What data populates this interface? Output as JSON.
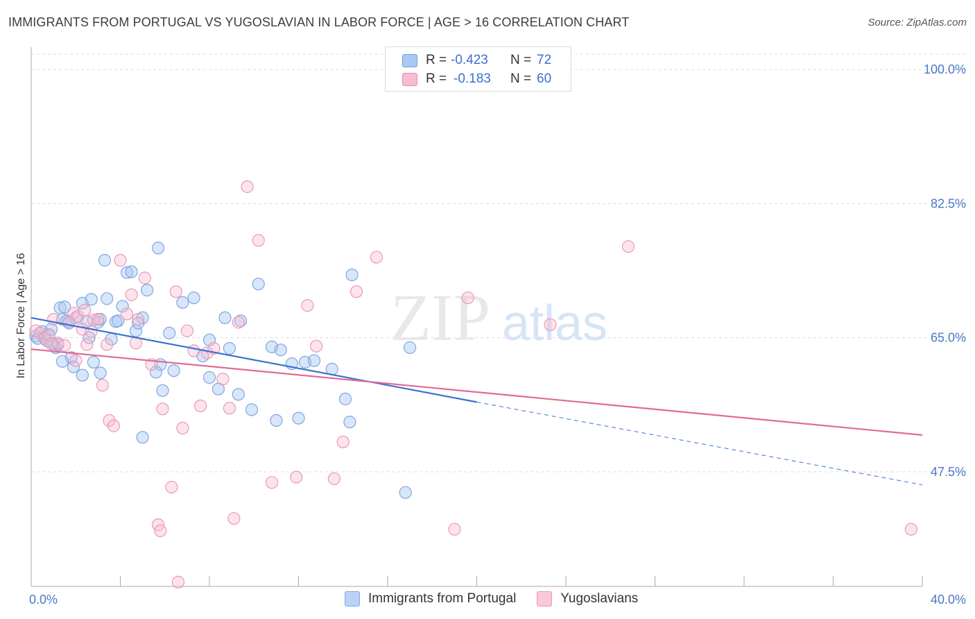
{
  "header": {
    "title": "IMMIGRANTS FROM PORTUGAL VS YUGOSLAVIAN IN LABOR FORCE | AGE > 16 CORRELATION CHART",
    "source": "Source: ZipAtlas.com"
  },
  "watermark": {
    "zip": "ZIP",
    "atlas": "atlas"
  },
  "legend": {
    "rows": [
      {
        "r_label": "R =",
        "r_value": "-0.423",
        "n_label": "N =",
        "n_value": "72",
        "color": "#a9c8f2",
        "border": "#6e9be0"
      },
      {
        "r_label": "R =",
        "r_value": "-0.183",
        "n_label": "N =",
        "n_value": "60",
        "color": "#f7bccf",
        "border": "#e88aab"
      }
    ]
  },
  "bottom_legend": [
    {
      "label": "Immigrants from Portugal",
      "color": "#b8d3f5",
      "border": "#7ea6e2"
    },
    {
      "label": "Yugoslavians",
      "color": "#f9c9d8",
      "border": "#eb98b5"
    }
  ],
  "chart_data": {
    "type": "scatter",
    "title": "IMMIGRANTS FROM PORTUGAL VS YUGOSLAVIAN IN LABOR FORCE | AGE > 16 CORRELATION CHART",
    "xlabel": "",
    "ylabel": "In Labor Force | Age > 16",
    "xlim": [
      0,
      40
    ],
    "ylim": [
      33,
      102
    ],
    "x_tick_labels": [
      "0.0%",
      "40.0%"
    ],
    "y_ticks": [
      47.5,
      65.0,
      82.5,
      100.0
    ],
    "y_tick_labels": [
      "47.5%",
      "65.0%",
      "82.5%",
      "100.0%"
    ],
    "grid": true,
    "legend_position": "top-center",
    "series": [
      {
        "name": "Immigrants from Portugal",
        "color": "#7ea6e2",
        "fill": "rgba(168,199,242,0.45)",
        "points": [
          [
            0.2,
            65.2
          ],
          [
            0.3,
            64.9
          ],
          [
            0.5,
            65.8
          ],
          [
            0.6,
            65.1
          ],
          [
            0.7,
            64.6
          ],
          [
            0.8,
            65.4
          ],
          [
            0.9,
            66.1
          ],
          [
            1.0,
            64.2
          ],
          [
            1.1,
            63.7
          ],
          [
            1.2,
            64.1
          ],
          [
            1.3,
            68.9
          ],
          [
            1.4,
            67.4
          ],
          [
            1.5,
            69.0
          ],
          [
            1.6,
            67.2
          ],
          [
            1.7,
            66.9
          ],
          [
            1.8,
            62.4
          ],
          [
            1.4,
            61.9
          ],
          [
            2.0,
            67.6
          ],
          [
            2.3,
            69.5
          ],
          [
            2.5,
            67.1
          ],
          [
            2.6,
            65.0
          ],
          [
            2.7,
            70.0
          ],
          [
            2.8,
            61.8
          ],
          [
            3.0,
            67.0
          ],
          [
            3.1,
            67.4
          ],
          [
            3.3,
            75.1
          ],
          [
            3.4,
            70.1
          ],
          [
            3.6,
            64.8
          ],
          [
            3.8,
            67.1
          ],
          [
            3.9,
            67.2
          ],
          [
            4.1,
            69.1
          ],
          [
            4.3,
            73.5
          ],
          [
            4.5,
            73.6
          ],
          [
            4.7,
            65.9
          ],
          [
            5.0,
            67.6
          ],
          [
            5.2,
            71.2
          ],
          [
            5.7,
            76.7
          ],
          [
            5.8,
            61.5
          ],
          [
            6.2,
            65.6
          ],
          [
            6.4,
            60.7
          ],
          [
            6.8,
            69.6
          ],
          [
            7.3,
            70.2
          ],
          [
            7.7,
            62.6
          ],
          [
            8.0,
            59.8
          ],
          [
            8.0,
            64.7
          ],
          [
            8.4,
            58.3
          ],
          [
            8.7,
            67.6
          ],
          [
            8.9,
            63.6
          ],
          [
            9.3,
            57.6
          ],
          [
            9.4,
            67.2
          ],
          [
            9.9,
            55.6
          ],
          [
            10.2,
            72.0
          ],
          [
            10.8,
            63.8
          ],
          [
            11.0,
            54.2
          ],
          [
            11.2,
            63.4
          ],
          [
            12.0,
            54.5
          ],
          [
            11.7,
            61.6
          ],
          [
            12.3,
            61.8
          ],
          [
            12.7,
            62.0
          ],
          [
            13.5,
            60.9
          ],
          [
            14.1,
            57.0
          ],
          [
            14.3,
            54.0
          ],
          [
            14.4,
            73.2
          ],
          [
            17.0,
            63.7
          ],
          [
            16.8,
            44.8
          ],
          [
            5.6,
            60.5
          ],
          [
            5.9,
            58.1
          ],
          [
            5.0,
            52.0
          ],
          [
            3.1,
            60.4
          ],
          [
            2.3,
            60.1
          ],
          [
            4.8,
            66.9
          ],
          [
            1.9,
            61.2
          ]
        ]
      },
      {
        "name": "Yugoslavians",
        "color": "#eb98b5",
        "fill": "rgba(247,188,207,0.40)",
        "points": [
          [
            0.2,
            65.9
          ],
          [
            0.4,
            65.6
          ],
          [
            0.6,
            64.9
          ],
          [
            0.8,
            65.3
          ],
          [
            1.0,
            67.4
          ],
          [
            1.2,
            64.3
          ],
          [
            1.5,
            64.0
          ],
          [
            1.7,
            67.1
          ],
          [
            1.9,
            68.2
          ],
          [
            2.1,
            67.8
          ],
          [
            2.3,
            66.1
          ],
          [
            2.5,
            64.1
          ],
          [
            2.8,
            67.3
          ],
          [
            3.0,
            67.4
          ],
          [
            3.2,
            58.8
          ],
          [
            3.5,
            54.2
          ],
          [
            3.7,
            53.5
          ],
          [
            4.0,
            75.1
          ],
          [
            4.3,
            68.1
          ],
          [
            4.5,
            70.6
          ],
          [
            4.8,
            67.4
          ],
          [
            5.1,
            72.8
          ],
          [
            5.4,
            61.5
          ],
          [
            5.9,
            55.7
          ],
          [
            6.3,
            45.5
          ],
          [
            6.5,
            71.0
          ],
          [
            6.8,
            53.2
          ],
          [
            7.0,
            65.9
          ],
          [
            7.3,
            63.3
          ],
          [
            7.6,
            56.1
          ],
          [
            7.9,
            63.0
          ],
          [
            8.2,
            63.6
          ],
          [
            8.6,
            59.6
          ],
          [
            8.9,
            55.8
          ],
          [
            9.1,
            41.4
          ],
          [
            9.3,
            67.0
          ],
          [
            9.7,
            84.7
          ],
          [
            10.2,
            77.7
          ],
          [
            10.8,
            46.1
          ],
          [
            11.9,
            46.8
          ],
          [
            12.4,
            69.2
          ],
          [
            12.8,
            63.9
          ],
          [
            13.6,
            46.6
          ],
          [
            14.0,
            51.4
          ],
          [
            14.6,
            71.0
          ],
          [
            15.5,
            75.5
          ],
          [
            19.0,
            40.0
          ],
          [
            19.6,
            70.2
          ],
          [
            23.3,
            66.7
          ],
          [
            26.8,
            76.9
          ],
          [
            5.7,
            40.6
          ],
          [
            5.8,
            39.8
          ],
          [
            6.6,
            33.1
          ],
          [
            2.0,
            62.0
          ],
          [
            2.7,
            65.8
          ],
          [
            4.7,
            64.3
          ],
          [
            3.4,
            64.1
          ],
          [
            0.9,
            64.2
          ],
          [
            39.5,
            40.0
          ],
          [
            2.4,
            68.6
          ]
        ]
      }
    ],
    "trend_lines": [
      {
        "series": "Immigrants from Portugal",
        "color": "#3a72d0",
        "solid": [
          [
            0.0,
            67.6
          ],
          [
            20.0,
            56.6
          ]
        ],
        "dashed": [
          [
            20.0,
            56.6
          ],
          [
            40.0,
            45.8
          ]
        ]
      },
      {
        "series": "Yugoslavians",
        "color": "#e06b95",
        "solid": [
          [
            0.0,
            63.5
          ],
          [
            40.0,
            52.3
          ]
        ]
      }
    ]
  }
}
